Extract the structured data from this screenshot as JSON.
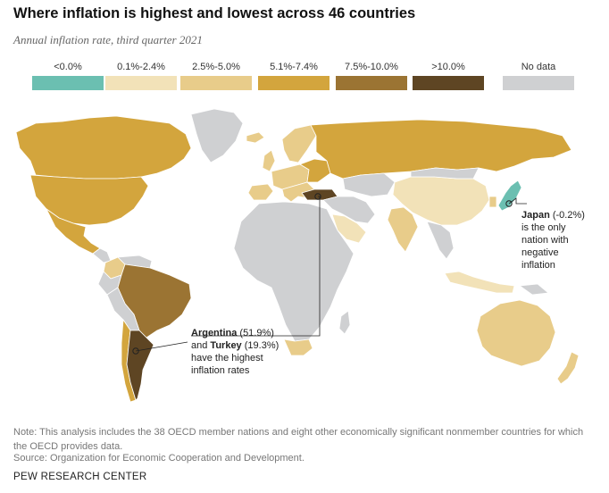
{
  "header": {
    "title": "Where inflation is highest and lowest across 46 countries",
    "subtitle": "Annual inflation rate, third quarter 2021"
  },
  "legend": {
    "items": [
      {
        "label": "<0.0%",
        "color": "#6bbfb1"
      },
      {
        "label": "0.1%-2.4%",
        "color": "#f2e2b8"
      },
      {
        "label": "2.5%-5.0%",
        "color": "#e8cc8a"
      },
      {
        "label": "5.1%-7.4%",
        "color": "#d3a53d"
      },
      {
        "label": "7.5%-10.0%",
        "color": "#9b7433"
      },
      {
        "label": ">10.0%",
        "color": "#5e4523"
      },
      {
        "label": "No data",
        "color": "#cfd0d2"
      }
    ]
  },
  "map": {
    "countries": [
      {
        "name": "Canada",
        "category": "5.1%-7.4%"
      },
      {
        "name": "United States",
        "category": "5.1%-7.4%"
      },
      {
        "name": "Mexico",
        "category": "5.1%-7.4%"
      },
      {
        "name": "Greenland",
        "category": "No data"
      },
      {
        "name": "Colombia",
        "category": "2.5%-5.0%"
      },
      {
        "name": "Brazil",
        "category": "7.5%-10.0%"
      },
      {
        "name": "Argentina",
        "category": ">10.0%"
      },
      {
        "name": "Chile",
        "category": "5.1%-7.4%"
      },
      {
        "name": "Russia",
        "category": "5.1%-7.4%"
      },
      {
        "name": "Turkey",
        "category": ">10.0%"
      },
      {
        "name": "Saudi Arabia",
        "category": "0.1%-2.4%"
      },
      {
        "name": "India",
        "category": "2.5%-5.0%"
      },
      {
        "name": "China",
        "category": "0.1%-2.4%"
      },
      {
        "name": "Japan",
        "category": "<0.0%"
      },
      {
        "name": "South Korea",
        "category": "2.5%-5.0%"
      },
      {
        "name": "Indonesia",
        "category": "0.1%-2.4%"
      },
      {
        "name": "Australia",
        "category": "2.5%-5.0%"
      },
      {
        "name": "New Zealand",
        "category": "2.5%-5.0%"
      },
      {
        "name": "South Africa",
        "category": "2.5%-5.0%"
      }
    ]
  },
  "annotations": {
    "japan": {
      "name": "Japan",
      "value": "(-0.2%)",
      "lines": [
        "is the only",
        "nation with",
        "negative",
        "inflation"
      ]
    },
    "highest": {
      "name1": "Argentina",
      "value1": "(51.9%)",
      "conj": "and",
      "name2": "Turkey",
      "value2": "(19.3%)",
      "lines": [
        "have the highest",
        "inflation rates"
      ]
    }
  },
  "footer": {
    "note": "Note: This analysis includes the 38 OECD member nations and eight other economically significant nonmember countries for which the OECD provides data.",
    "source": "Source: Organization for Economic Cooperation and Development.",
    "credit": "PEW RESEARCH CENTER"
  }
}
